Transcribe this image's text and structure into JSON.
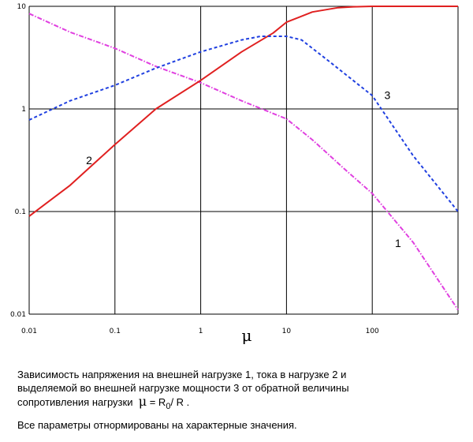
{
  "chart_data": {
    "type": "line",
    "xscale": "log",
    "yscale": "log",
    "xlim": [
      0.01,
      1000
    ],
    "ylim": [
      0.01,
      10
    ],
    "x_ticks": [
      "0.01",
      "0.1",
      "1",
      "10",
      "100"
    ],
    "y_ticks": [
      "10",
      "1",
      "0.1",
      "0.01"
    ],
    "xlabel": "μ",
    "grid": true,
    "series": [
      {
        "name": "1",
        "color": "#e040e0",
        "style": "dash-dot",
        "points": [
          [
            0.01,
            8.5
          ],
          [
            0.03,
            5.6
          ],
          [
            0.1,
            3.9
          ],
          [
            0.3,
            2.6
          ],
          [
            1,
            1.8
          ],
          [
            3,
            1.2
          ],
          [
            10,
            0.8
          ],
          [
            20,
            0.5
          ],
          [
            50,
            0.25
          ],
          [
            100,
            0.15
          ],
          [
            300,
            0.05
          ],
          [
            1000,
            0.011
          ]
        ]
      },
      {
        "name": "2",
        "color": "#e02020",
        "style": "solid",
        "points": [
          [
            0.01,
            0.09
          ],
          [
            0.03,
            0.18
          ],
          [
            0.1,
            0.45
          ],
          [
            0.3,
            1.0
          ],
          [
            1,
            1.9
          ],
          [
            3,
            3.6
          ],
          [
            7,
            5.5
          ],
          [
            10,
            7.0
          ],
          [
            20,
            8.8
          ],
          [
            40,
            9.7
          ],
          [
            60,
            9.9
          ],
          [
            100,
            10
          ],
          [
            1000,
            10
          ]
        ]
      },
      {
        "name": "3",
        "color": "#2040e0",
        "style": "dashed",
        "points": [
          [
            0.01,
            0.78
          ],
          [
            0.03,
            1.2
          ],
          [
            0.1,
            1.7
          ],
          [
            0.3,
            2.5
          ],
          [
            1,
            3.6
          ],
          [
            3,
            4.7
          ],
          [
            5,
            5.1
          ],
          [
            10,
            5.1
          ],
          [
            15,
            4.7
          ],
          [
            30,
            3.0
          ],
          [
            100,
            1.35
          ],
          [
            300,
            0.35
          ],
          [
            1000,
            0.1
          ]
        ]
      }
    ],
    "curve_labels": [
      {
        "text": "1",
        "x": 200,
        "y": 0.045
      },
      {
        "text": "2",
        "x": 0.05,
        "y": 0.29
      },
      {
        "text": "3",
        "x": 150,
        "y": 1.25
      }
    ]
  },
  "caption": {
    "line1": "Зависимость напряжения на внешней нагрузке 1, тока в нагрузке 2 и",
    "line2": "выделяемой во внешней нагрузке мощности 3 от обратной величины",
    "line3_text": "сопротивления нагрузки",
    "line3_mu": "μ",
    "line3_eq": " = R",
    "line3_sub": "0",
    "line3_end": "/ R .",
    "line4": "Все параметры отнормированы на характерные значения."
  }
}
